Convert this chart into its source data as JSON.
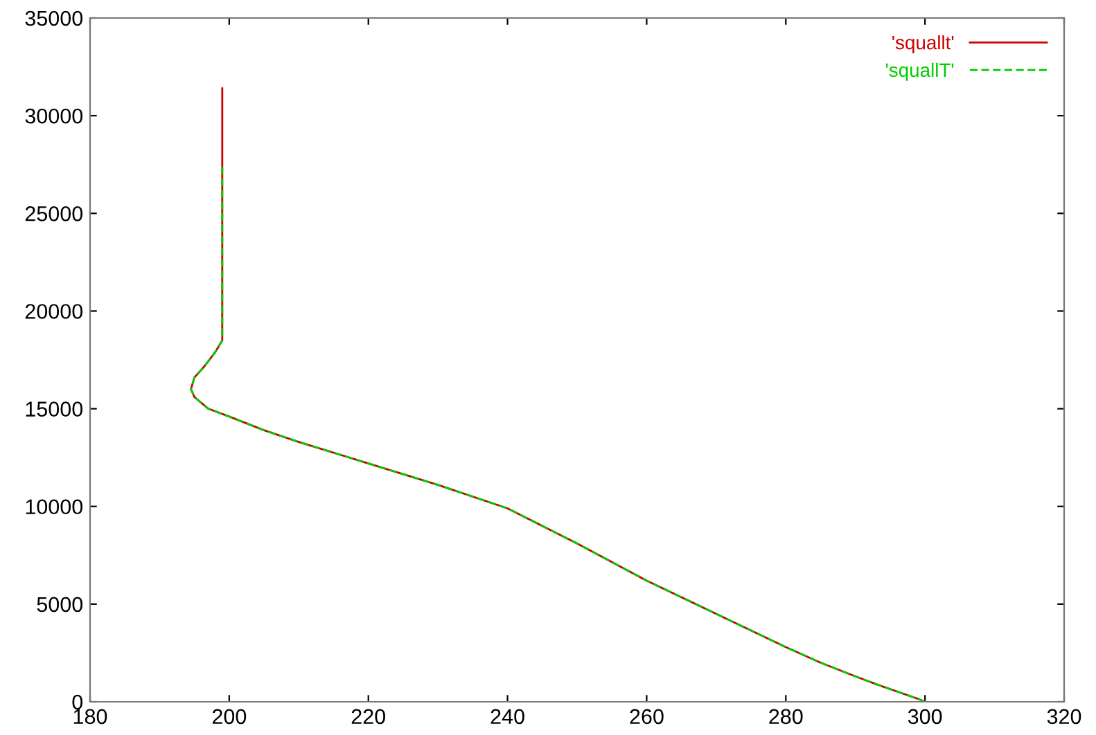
{
  "chart_data": {
    "type": "line",
    "xlim": [
      180,
      320
    ],
    "ylim": [
      0,
      35000
    ],
    "xticks": [
      180,
      200,
      220,
      240,
      260,
      280,
      300,
      320
    ],
    "yticks": [
      0,
      5000,
      10000,
      15000,
      20000,
      25000,
      30000,
      35000
    ],
    "grid": false,
    "legend": "top right",
    "marker": "none",
    "series": [
      {
        "name": "'squallt'",
        "color": "#cc0000",
        "line_style": "solid",
        "x": [
          300,
          299,
          297,
          293,
          290,
          285,
          280,
          270,
          260,
          250,
          240,
          230,
          220,
          210,
          205,
          200,
          197,
          195,
          194.5,
          195,
          196.5,
          198,
          199,
          199,
          199
        ],
        "values": [
          0,
          150,
          400,
          900,
          1300,
          2000,
          2800,
          4500,
          6200,
          8100,
          9900,
          11100,
          12200,
          13300,
          13900,
          14600,
          15000,
          15600,
          16000,
          16600,
          17200,
          17900,
          18500,
          25000,
          31400
        ]
      },
      {
        "name": "'squallT'",
        "color": "#00cc00",
        "line_style": "dashed",
        "x": [
          300,
          299,
          297,
          293,
          290,
          285,
          280,
          270,
          260,
          250,
          240,
          230,
          220,
          210,
          205,
          200,
          197,
          195,
          194.5,
          195,
          196.5,
          198,
          199,
          199,
          199
        ],
        "values": [
          0,
          150,
          400,
          900,
          1300,
          2000,
          2800,
          4500,
          6200,
          8100,
          9900,
          11100,
          12200,
          13300,
          13900,
          14600,
          15000,
          15600,
          16000,
          16600,
          17200,
          17900,
          18500,
          25000,
          27400
        ]
      }
    ]
  }
}
